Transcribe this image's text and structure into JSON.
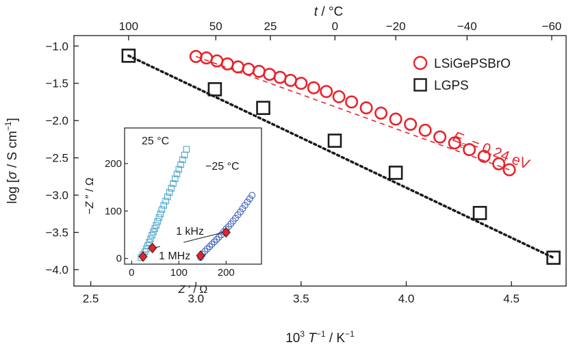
{
  "chart_data": {
    "type": "scatter",
    "xlabel_parts": [
      "10",
      "3",
      " T",
      "−1",
      " / K",
      "−1"
    ],
    "ylabel_parts": [
      "log [",
      "σ",
      " / S cm",
      "−1",
      "]"
    ],
    "top_axis_label_parts": [
      "t",
      " / °C"
    ],
    "xlim": [
      2.42,
      4.76
    ],
    "ylim": [
      -4.22,
      -0.86
    ],
    "x_ticks": [
      2.5,
      3.0,
      3.5,
      4.0,
      4.5
    ],
    "x_tick_labels": [
      "2.5",
      "3.0",
      "3.5",
      "4.0",
      "4.5"
    ],
    "y_ticks": [
      -1.0,
      -1.5,
      -2.0,
      -2.5,
      -3.0,
      -3.5,
      -4.0
    ],
    "y_tick_labels": [
      "−1.0",
      "−1.5",
      "−2.0",
      "−2.5",
      "−3.0",
      "−3.5",
      "−4.0"
    ],
    "top_ticks": [
      100,
      50,
      25,
      0,
      -20,
      -40,
      -60
    ],
    "top_tick_labels": [
      "100",
      "50",
      "25",
      "0",
      "−20",
      "−40",
      "−60"
    ],
    "series": [
      {
        "name": "LSiGePSBrO",
        "marker": "circle",
        "color": "#e8222a",
        "fit_line": "dashed",
        "x": [
          3.0,
          3.05,
          3.1,
          3.15,
          3.2,
          3.25,
          3.3,
          3.35,
          3.4,
          3.45,
          3.5,
          3.56,
          3.62,
          3.68,
          3.74,
          3.81,
          3.88,
          3.95,
          4.02,
          4.09,
          4.16,
          4.23,
          4.3,
          4.37,
          4.44,
          4.49
        ],
        "y": [
          -1.14,
          -1.16,
          -1.2,
          -1.24,
          -1.28,
          -1.31,
          -1.34,
          -1.38,
          -1.42,
          -1.46,
          -1.5,
          -1.56,
          -1.61,
          -1.68,
          -1.75,
          -1.83,
          -1.9,
          -1.98,
          -2.05,
          -2.13,
          -2.22,
          -2.3,
          -2.39,
          -2.48,
          -2.58,
          -2.66
        ]
      },
      {
        "name": "LGPS",
        "marker": "square",
        "color": "#1a1a1a",
        "fit_line": "dotted",
        "x": [
          2.68,
          3.09,
          3.32,
          3.66,
          3.95,
          4.35,
          4.7
        ],
        "y": [
          -1.13,
          -1.58,
          -1.83,
          -2.27,
          -2.7,
          -3.24,
          -3.84
        ]
      }
    ],
    "annotation": {
      "symbol": "E",
      "subscript": "a",
      "text": " = 0.24 eV",
      "color": "#e8222a"
    },
    "legend_position": "top-right",
    "grid": false,
    "inset": {
      "type": "scatter",
      "xlabel_parts": [
        "Z",
        " ′ / Ω"
      ],
      "ylabel_parts": [
        "−Z",
        " ″ / Ω"
      ],
      "xlim": [
        -15,
        275
      ],
      "ylim": [
        -12,
        275
      ],
      "x_ticks": [
        0,
        100,
        200
      ],
      "x_tick_labels": [
        "0",
        "100",
        "200"
      ],
      "y_ticks": [
        0,
        100,
        200
      ],
      "y_tick_labels": [
        "0",
        "100",
        "200"
      ],
      "labels": [
        "25 °C",
        "−25 °C",
        "1 kHz",
        "1 MHz"
      ],
      "series": [
        {
          "name": "25 °C",
          "marker": "square",
          "color": "#4aa3c8",
          "x": [
            20,
            24,
            28,
            31,
            34,
            37,
            40,
            43,
            46,
            49,
            52,
            55,
            58,
            61,
            64,
            68,
            72,
            76,
            80,
            84,
            88,
            92,
            96,
            100,
            104,
            108,
            112,
            116
          ],
          "y": [
            2,
            8,
            14,
            20,
            27,
            34,
            41,
            49,
            56,
            63,
            70,
            78,
            86,
            94,
            103,
            112,
            121,
            130,
            139,
            148,
            158,
            168,
            178,
            188,
            198,
            208,
            218,
            230
          ]
        },
        {
          "name": "−25 °C",
          "marker": "circle",
          "color": "#3a5fb8",
          "x": [
            146,
            150,
            155,
            160,
            165,
            170,
            175,
            180,
            185,
            190,
            195,
            200,
            205,
            210,
            215,
            220,
            225,
            230,
            235,
            240,
            245,
            250,
            255
          ],
          "y": [
            2,
            9,
            15,
            20,
            25,
            30,
            35,
            40,
            45,
            50,
            56,
            62,
            67,
            73,
            79,
            85,
            92,
            98,
            105,
            112,
            119,
            126,
            133
          ]
        }
      ],
      "markers": [
        {
          "label": "1 MHz",
          "x": 24,
          "y": 4
        },
        {
          "label": "1 MHz",
          "x": 44,
          "y": 22
        },
        {
          "label": "1 kHz",
          "x": 146,
          "y": 6
        },
        {
          "label": "1 kHz",
          "x": 200,
          "y": 55
        }
      ],
      "marker_color": "#e8222a"
    }
  }
}
